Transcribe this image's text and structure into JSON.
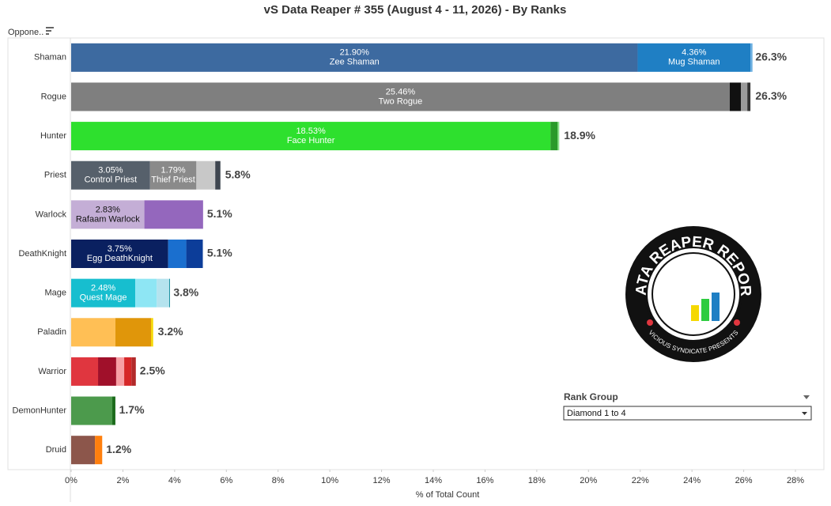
{
  "chart_data": {
    "type": "stacked_bar",
    "title": "vS Data Reaper # 355 (August 4 - 11, 2026) - By Ranks",
    "y_label": "Oppone..",
    "x_label": "% of Total Count",
    "xlim": [
      0,
      29.1
    ],
    "xticks": [
      {
        "value": 0,
        "label": "0%"
      },
      {
        "value": 2,
        "label": "2%"
      },
      {
        "value": 4,
        "label": "4%"
      },
      {
        "value": 6,
        "label": "6%"
      },
      {
        "value": 8,
        "label": "8%"
      },
      {
        "value": 10,
        "label": "10%"
      },
      {
        "value": 12,
        "label": "12%"
      },
      {
        "value": 14,
        "label": "14%"
      },
      {
        "value": 16,
        "label": "16%"
      },
      {
        "value": 18,
        "label": "18%"
      },
      {
        "value": 20,
        "label": "20%"
      },
      {
        "value": 22,
        "label": "22%"
      },
      {
        "value": 24,
        "label": "24%"
      },
      {
        "value": 26,
        "label": "26%"
      },
      {
        "value": 28,
        "label": "28%"
      }
    ],
    "grid": false,
    "bars": [
      {
        "category": "Shaman",
        "total": 26.3,
        "total_label": "26.3%",
        "segments": [
          {
            "name": "Zee Shaman",
            "value": 21.9,
            "value_label": "21.90%",
            "color": "#3d6aa0"
          },
          {
            "name": "Mug Shaman",
            "value": 4.36,
            "value_label": "4.36%",
            "color": "#1f7fc4"
          },
          {
            "value": 0.08,
            "color": "#6aaee0"
          }
        ]
      },
      {
        "category": "Rogue",
        "total": 26.3,
        "total_label": "26.3%",
        "segments": [
          {
            "name": "Two Rogue",
            "value": 25.46,
            "value_label": "25.46%",
            "color": "#7f7f7f"
          },
          {
            "value": 0.43,
            "color": "#111111"
          },
          {
            "value": 0.25,
            "color": "#9b9b9b"
          },
          {
            "value": 0.12,
            "color": "#333333"
          }
        ]
      },
      {
        "category": "Hunter",
        "total": 18.9,
        "total_label": "18.9%",
        "segments": [
          {
            "name": "Face Hunter",
            "value": 18.53,
            "value_label": "18.53%",
            "color": "#2ee02e"
          },
          {
            "value": 0.28,
            "color": "#2a9a2a"
          },
          {
            "value": 0.06,
            "color": "#8ce38c"
          }
        ]
      },
      {
        "category": "Priest",
        "total": 5.8,
        "total_label": "5.8%",
        "segments": [
          {
            "name": "Control Priest",
            "value": 3.05,
            "value_label": "3.05%",
            "color": "#56606b"
          },
          {
            "name": "Thief Priest",
            "value": 1.79,
            "value_label": "1.79%",
            "color": "#8a8a8a"
          },
          {
            "value": 0.73,
            "color": "#c8c8c8"
          },
          {
            "value": 0.2,
            "color": "#3f4650"
          }
        ]
      },
      {
        "category": "Warlock",
        "total": 5.1,
        "total_label": "5.1%",
        "segments": [
          {
            "name": "Rafaam Warlock",
            "value": 2.83,
            "value_label": "2.83%",
            "color": "#c4aed6"
          },
          {
            "value": 2.27,
            "color": "#9467bd"
          }
        ]
      },
      {
        "category": "DeathKnight",
        "total": 5.1,
        "total_label": "5.1%",
        "segments": [
          {
            "name": "Egg DeathKnight",
            "value": 3.75,
            "value_label": "3.75%",
            "color": "#0a2060"
          },
          {
            "value": 0.7,
            "color": "#1a6fcf"
          },
          {
            "value": 0.64,
            "color": "#0c3d99"
          }
        ]
      },
      {
        "category": "Mage",
        "total": 3.8,
        "total_label": "3.8%",
        "segments": [
          {
            "name": "Quest Mage",
            "value": 2.48,
            "value_label": "2.48%",
            "color": "#17becf"
          },
          {
            "value": 0.83,
            "color": "#8ee6f4"
          },
          {
            "value": 0.48,
            "color": "#b5e3ee"
          },
          {
            "value": 0.03,
            "color": "#1a8fa0"
          }
        ]
      },
      {
        "category": "Paladin",
        "total": 3.2,
        "total_label": "3.2%",
        "segments": [
          {
            "value": 1.71,
            "color": "#ffbf55"
          },
          {
            "value": 1.38,
            "color": "#e0960a"
          },
          {
            "value": 0.08,
            "color": "#f5d800"
          }
        ]
      },
      {
        "category": "Warrior",
        "total": 2.5,
        "total_label": "2.5%",
        "segments": [
          {
            "value": 1.04,
            "color": "#e0363f"
          },
          {
            "value": 0.7,
            "color": "#a0102a"
          },
          {
            "value": 0.31,
            "color": "#f7a0a5"
          },
          {
            "value": 0.28,
            "color": "#d62728"
          },
          {
            "value": 0.17,
            "color": "#b22a2a"
          }
        ]
      },
      {
        "category": "DemonHunter",
        "total": 1.7,
        "total_label": "1.7%",
        "segments": [
          {
            "value": 1.59,
            "color": "#4c9a4c"
          },
          {
            "value": 0.12,
            "color": "#1b6b1b"
          }
        ]
      },
      {
        "category": "Druid",
        "total": 1.2,
        "total_label": "1.2%",
        "segments": [
          {
            "value": 0.92,
            "color": "#8c564b"
          },
          {
            "value": 0.28,
            "color": "#ff7f0e"
          }
        ]
      }
    ]
  },
  "filter": {
    "title": "Rank Group",
    "value": "Diamond 1 to 4"
  },
  "logo": {
    "title": "DATA REAPER REPORT",
    "subtitle": "VICIOUS SYNDICATE PRESENTS"
  }
}
